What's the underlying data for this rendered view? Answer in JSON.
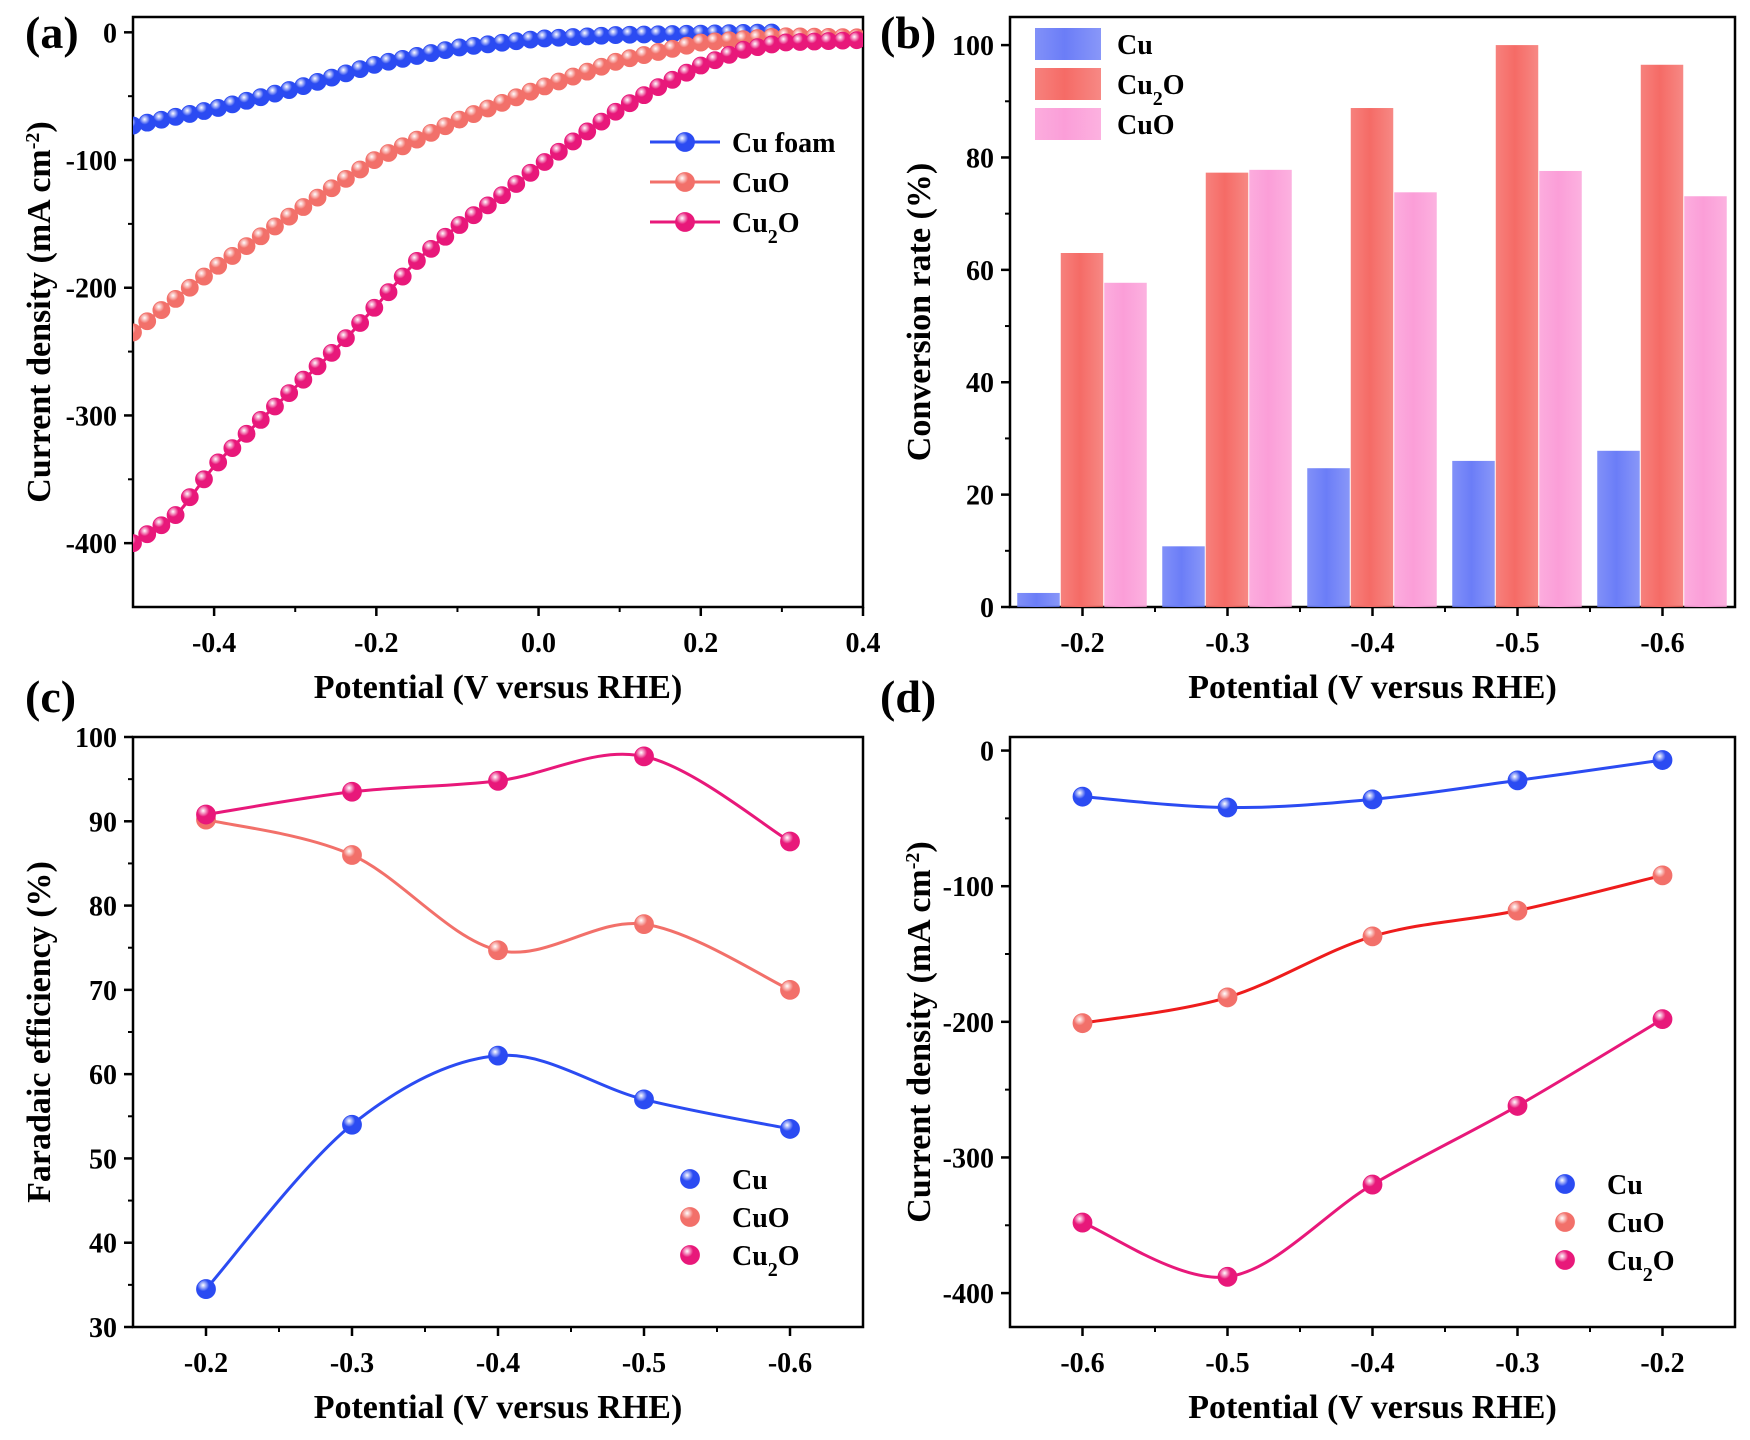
{
  "chart_data": [
    {
      "id": "a",
      "type": "line",
      "panel_label": "(a)",
      "xlabel": "Potential (V versus RHE)",
      "ylabel": "Current density (mA cm",
      "ylabel_sup": "-2",
      "ylabel_end": ")",
      "xlim": [
        -0.5,
        0.4
      ],
      "ylim": [
        -450,
        12
      ],
      "xticks": [
        -0.4,
        -0.2,
        0.0,
        0.2,
        0.4
      ],
      "xtick_labels": [
        "-0.4",
        "-0.2",
        "0.0",
        "0.2",
        "0.4"
      ],
      "yticks": [
        0,
        -100,
        -200,
        -300,
        -400
      ],
      "ytick_labels": [
        "0",
        "-100",
        "-200",
        "-300",
        "-400"
      ],
      "legend_position": "center-right",
      "series": [
        {
          "name": "Cu foam",
          "name_main": "Cu foam",
          "name_sub": "",
          "name_end": "",
          "color": "#2b4bf2",
          "x": [
            -0.5,
            -0.4,
            -0.3,
            -0.2,
            -0.1,
            0.0,
            0.1,
            0.2,
            0.3
          ],
          "y": [
            -73,
            -60,
            -44,
            -25,
            -12,
            -5,
            -2,
            -1,
            0
          ]
        },
        {
          "name": "CuO",
          "name_main": "CuO",
          "name_sub": "",
          "name_end": "",
          "color": "#f2706a",
          "x": [
            -0.5,
            -0.4,
            -0.3,
            -0.2,
            -0.1,
            0.0,
            0.1,
            0.2,
            0.3,
            0.4
          ],
          "y": [
            -235,
            -185,
            -141,
            -99,
            -69,
            -44,
            -22,
            -8,
            -3,
            -4
          ]
        },
        {
          "name": "Cu2O",
          "name_main": "Cu",
          "name_sub": "2",
          "name_end": "O",
          "color": "#e8187a",
          "x": [
            -0.5,
            -0.45,
            -0.4,
            -0.35,
            -0.3,
            -0.25,
            -0.2,
            -0.15,
            -0.1,
            -0.05,
            0.0,
            0.05,
            0.1,
            0.15,
            0.2,
            0.25,
            0.3,
            0.35,
            0.4
          ],
          "y": [
            -400,
            -380,
            -340,
            -308,
            -278,
            -248,
            -214,
            -179,
            -152,
            -130,
            -105,
            -82,
            -60,
            -42,
            -26,
            -14,
            -8,
            -7,
            -6
          ]
        }
      ]
    },
    {
      "id": "b",
      "type": "bar",
      "panel_label": "(b)",
      "xlabel": "Potential (V versus RHE)",
      "ylabel": "Conversion rate (%)",
      "categories": [
        "-0.2",
        "-0.3",
        "-0.4",
        "-0.5",
        "-0.6"
      ],
      "ylim": [
        0,
        105
      ],
      "yticks": [
        0,
        20,
        40,
        60,
        80,
        100
      ],
      "ytick_labels": [
        "0",
        "20",
        "40",
        "60",
        "80",
        "100"
      ],
      "legend_position": "top-left",
      "series": [
        {
          "name": "Cu",
          "name_main": "Cu",
          "name_sub": "",
          "name_end": "",
          "color": "#6b7df7",
          "values": [
            2.5,
            10.8,
            24.7,
            26.0,
            27.8
          ]
        },
        {
          "name": "Cu2O",
          "name_main": "Cu",
          "name_sub": "2",
          "name_end": "O",
          "color": "#f56b66",
          "values": [
            63.0,
            77.3,
            88.8,
            100.0,
            96.5
          ]
        },
        {
          "name": "CuO",
          "name_main": "CuO",
          "name_sub": "",
          "name_end": "",
          "color": "#fb9ed8",
          "values": [
            57.7,
            77.8,
            73.8,
            77.6,
            73.1
          ]
        }
      ]
    },
    {
      "id": "c",
      "type": "scatter",
      "panel_label": "(c)",
      "xlabel": "Potential (V versus RHE)",
      "ylabel": "Faradaic efficiency (%)",
      "xlim": [
        -0.15,
        -0.65
      ],
      "ylim": [
        30,
        100
      ],
      "xticks": [
        -0.2,
        -0.3,
        -0.4,
        -0.5,
        -0.6
      ],
      "xtick_labels": [
        "-0.2",
        "-0.3",
        "-0.4",
        "-0.5",
        "-0.6"
      ],
      "yticks": [
        30,
        40,
        50,
        60,
        70,
        80,
        90,
        100
      ],
      "ytick_labels": [
        "30",
        "40",
        "50",
        "60",
        "70",
        "80",
        "90",
        "100"
      ],
      "legend_position": "bottom-right",
      "series": [
        {
          "name": "Cu",
          "name_main": "Cu",
          "name_sub": "",
          "name_end": "",
          "color": "#2b4bf2",
          "line_color": "#2b4bf2",
          "x": [
            -0.2,
            -0.3,
            -0.4,
            -0.5,
            -0.6
          ],
          "y": [
            34.5,
            54.0,
            62.2,
            57.0,
            53.5
          ]
        },
        {
          "name": "CuO",
          "name_main": "CuO",
          "name_sub": "",
          "name_end": "",
          "color": "#f2706a",
          "line_color": "#f2706a",
          "x": [
            -0.2,
            -0.3,
            -0.4,
            -0.5,
            -0.6
          ],
          "y": [
            90.2,
            86.0,
            74.7,
            77.8,
            70.0
          ]
        },
        {
          "name": "Cu2O",
          "name_main": "Cu",
          "name_sub": "2",
          "name_end": "O",
          "color": "#e8187a",
          "line_color": "#e8187a",
          "x": [
            -0.2,
            -0.3,
            -0.4,
            -0.5,
            -0.6
          ],
          "y": [
            90.8,
            93.5,
            94.8,
            97.7,
            87.6
          ]
        }
      ]
    },
    {
      "id": "d",
      "type": "scatter",
      "panel_label": "(d)",
      "xlabel": "Potential (V versus RHE)",
      "ylabel": "Current density (mA cm",
      "ylabel_sup": "-2",
      "ylabel_end": ")",
      "xlim": [
        -0.65,
        -0.15
      ],
      "ylim": [
        -425,
        10
      ],
      "xticks": [
        -0.6,
        -0.5,
        -0.4,
        -0.3,
        -0.2
      ],
      "xtick_labels": [
        "-0.6",
        "-0.5",
        "-0.4",
        "-0.3",
        "-0.2"
      ],
      "yticks": [
        0,
        -100,
        -200,
        -300,
        -400
      ],
      "ytick_labels": [
        "0",
        "-100",
        "-200",
        "-300",
        "-400"
      ],
      "legend_position": "bottom-right",
      "series": [
        {
          "name": "Cu",
          "name_main": "Cu",
          "name_sub": "",
          "name_end": "",
          "color": "#2b4bf2",
          "line_color": "#2b4bf2",
          "x": [
            -0.6,
            -0.5,
            -0.4,
            -0.3,
            -0.2
          ],
          "y": [
            -34,
            -42,
            -36,
            -22,
            -7
          ]
        },
        {
          "name": "CuO",
          "name_main": "CuO",
          "name_sub": "",
          "name_end": "",
          "color": "#f2706a",
          "line_color": "#ee1c1c",
          "x": [
            -0.6,
            -0.5,
            -0.4,
            -0.3,
            -0.2
          ],
          "y": [
            -201,
            -182,
            -137,
            -118,
            -92
          ]
        },
        {
          "name": "Cu2O",
          "name_main": "Cu",
          "name_sub": "2",
          "name_end": "O",
          "color": "#e8187a",
          "line_color": "#e8187a",
          "x": [
            -0.6,
            -0.5,
            -0.4,
            -0.3,
            -0.2
          ],
          "y": [
            -348,
            -388,
            -320,
            -262,
            -198
          ]
        }
      ]
    }
  ]
}
